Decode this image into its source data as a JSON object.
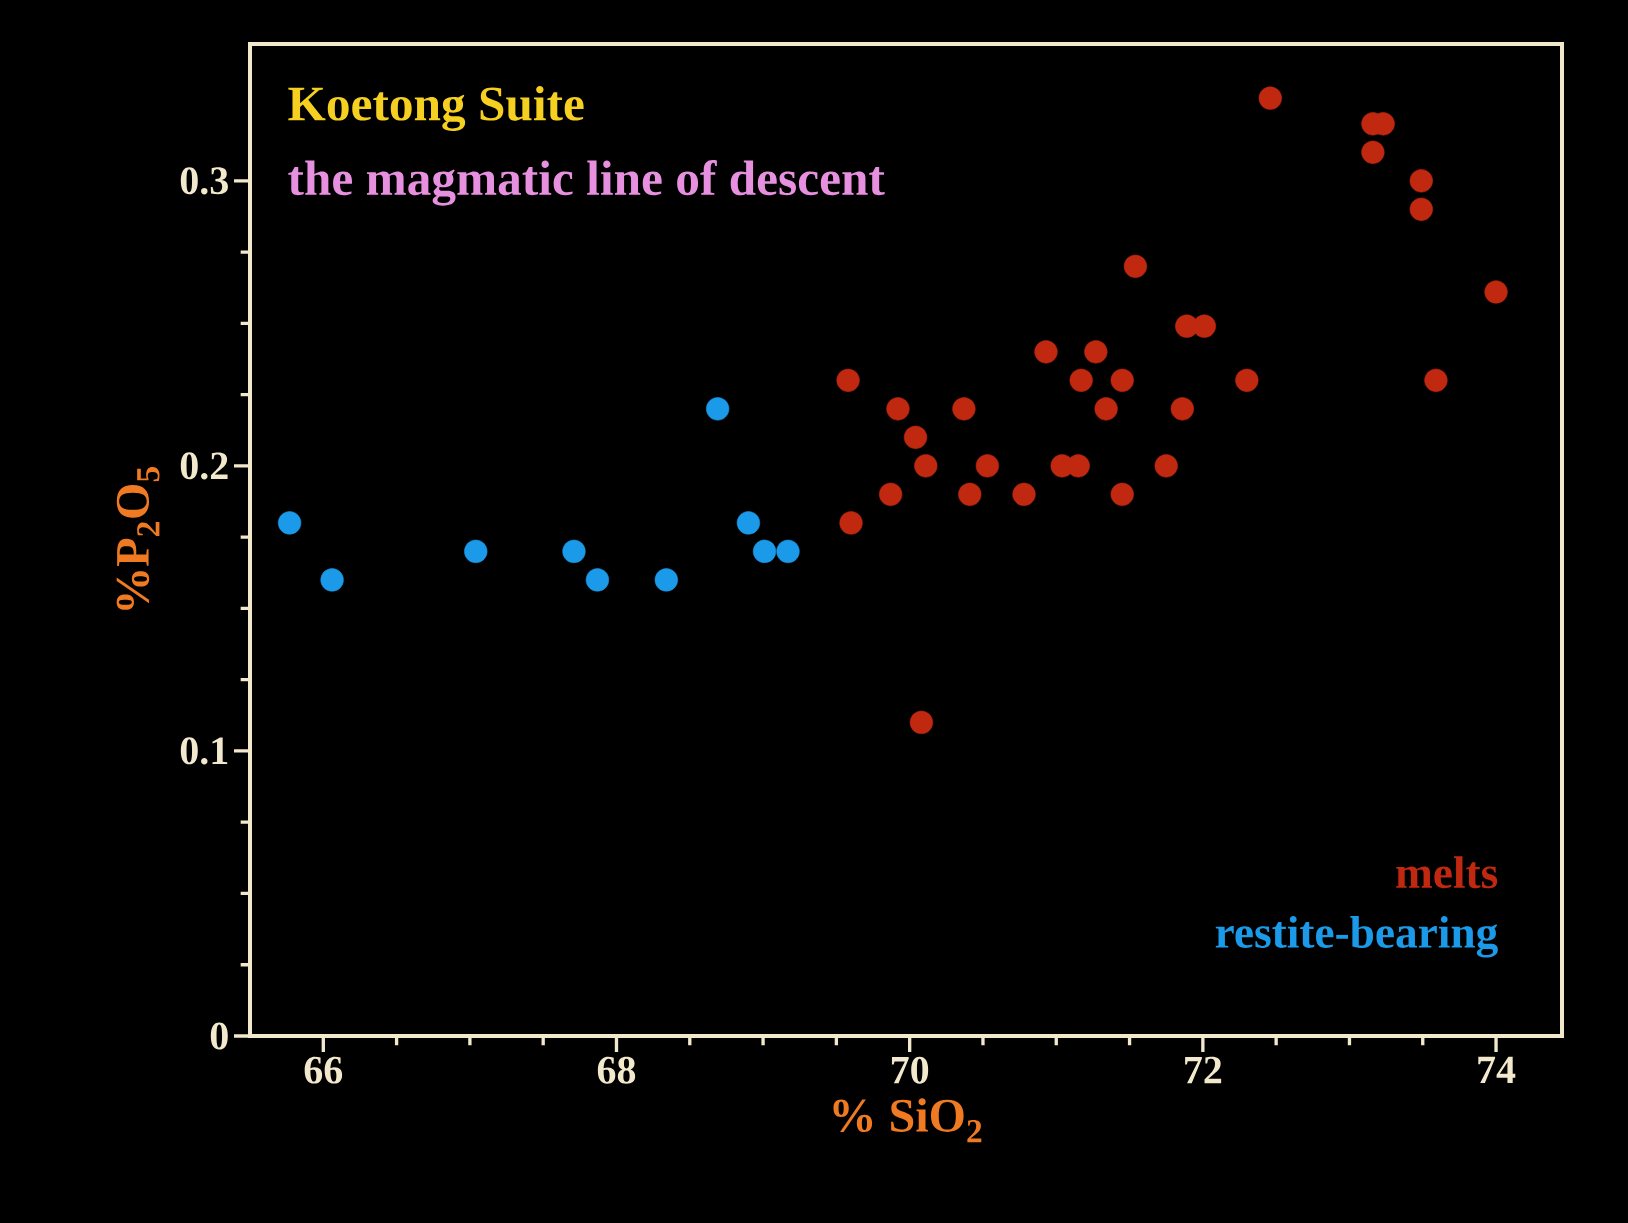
{
  "chart_data": {
    "type": "scatter",
    "title": "Koetong Suite",
    "subtitle": "the magmatic line of descent",
    "xlabel": "% SiO$_{2}$",
    "ylabel": "%P$_{2}$O$_{5}$",
    "xlim": [
      65.5,
      74.45
    ],
    "ylim": [
      0,
      0.348
    ],
    "xticks": [
      66,
      68,
      70,
      72,
      74
    ],
    "yticks": [
      0,
      0.1,
      0.2,
      0.3
    ],
    "grid": false,
    "marker": "circle",
    "legend": "bottom right",
    "series": [
      {
        "name": "melts",
        "color": "#c0280f",
        "x": [
          72.46,
          73.16,
          73.23,
          73.16,
          73.49,
          73.49,
          74.0,
          71.54,
          71.89,
          72.01,
          70.93,
          71.27,
          69.58,
          71.17,
          71.45,
          72.3,
          73.59,
          69.92,
          70.37,
          71.34,
          71.86,
          70.04,
          70.11,
          70.53,
          71.04,
          71.15,
          71.75,
          69.87,
          70.41,
          70.78,
          71.45,
          69.6,
          70.08
        ],
        "values": [
          0.329,
          0.32,
          0.32,
          0.31,
          0.3,
          0.29,
          0.261,
          0.27,
          0.249,
          0.249,
          0.24,
          0.24,
          0.23,
          0.23,
          0.23,
          0.23,
          0.23,
          0.22,
          0.22,
          0.22,
          0.22,
          0.21,
          0.2,
          0.2,
          0.2,
          0.2,
          0.2,
          0.19,
          0.19,
          0.19,
          0.19,
          0.18,
          0.11
        ]
      },
      {
        "name": "restite-bearing",
        "color": "#1a9ae8",
        "x": [
          65.77,
          66.06,
          67.04,
          67.71,
          67.87,
          68.34,
          68.69,
          68.9,
          69.01,
          69.17
        ],
        "values": [
          0.18,
          0.16,
          0.17,
          0.17,
          0.16,
          0.16,
          0.22,
          0.18,
          0.17,
          0.17
        ]
      }
    ]
  }
}
